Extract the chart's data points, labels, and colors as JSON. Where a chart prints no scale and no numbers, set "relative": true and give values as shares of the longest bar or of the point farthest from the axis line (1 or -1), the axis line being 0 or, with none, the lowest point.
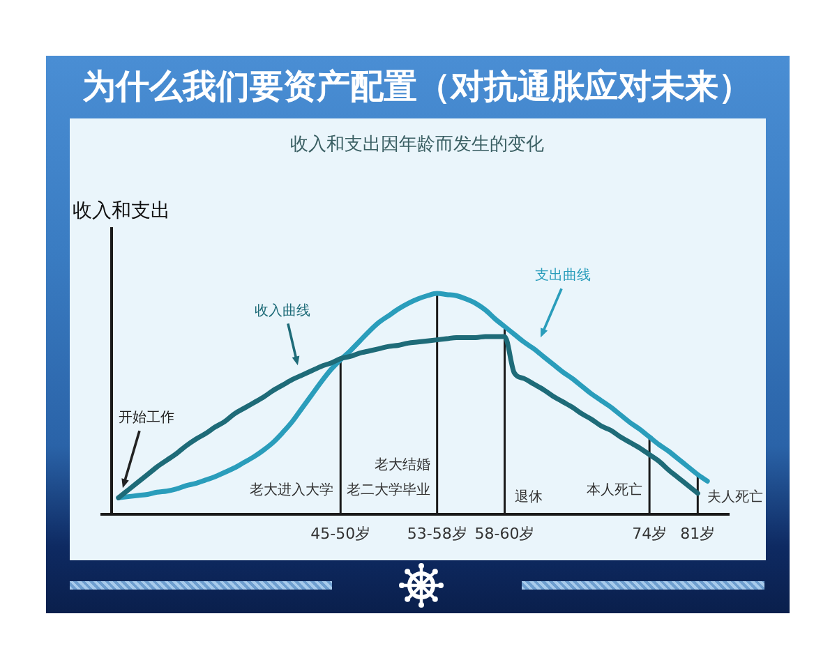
{
  "chart_data": {
    "type": "line",
    "relative": true,
    "title": "为什么我们要资产配置（对抗通胀应对未来）",
    "subtitle": "收入和支出因年龄而发生的变化",
    "ylabel": "收入和支出",
    "tick_labels": "x",
    "categories": [
      null,
      null,
      null,
      null,
      null,
      null,
      null,
      null,
      null,
      null,
      null,
      null,
      null,
      null,
      null,
      null,
      null,
      null,
      null,
      null,
      null,
      null,
      null,
      "45-50岁",
      null,
      null,
      null,
      null,
      null,
      null,
      null,
      null,
      null,
      "53-58岁",
      null,
      null,
      null,
      null,
      null,
      null,
      "58-60岁",
      null,
      null,
      null,
      null,
      null,
      null,
      null,
      null,
      null,
      null,
      null,
      null,
      null,
      null,
      "74岁",
      null,
      null,
      null,
      null,
      "81岁",
      null
    ],
    "series": [
      {
        "name": "收入曲线",
        "color": "#1e6b78",
        "values": [
          0.075,
          0.11,
          0.145,
          0.18,
          0.215,
          0.245,
          0.275,
          0.31,
          0.34,
          0.365,
          0.395,
          0.42,
          0.455,
          0.48,
          0.505,
          0.53,
          0.56,
          0.585,
          0.61,
          0.63,
          0.65,
          0.67,
          0.685,
          0.705,
          0.715,
          0.73,
          0.74,
          0.75,
          0.76,
          0.765,
          0.775,
          0.78,
          0.785,
          0.79,
          0.795,
          0.8,
          0.8,
          0.8,
          0.805,
          0.805,
          0.805,
          0.64,
          0.615,
          0.59,
          0.565,
          0.535,
          0.51,
          0.485,
          0.455,
          0.43,
          0.4,
          0.38,
          0.35,
          0.325,
          0.3,
          0.27,
          0.24,
          0.2,
          0.165,
          0.13,
          0.095,
          null
        ]
      },
      {
        "name": "支出曲线",
        "color": "#2a9dbb",
        "values": [
          0.075,
          0.08,
          0.085,
          0.09,
          0.1,
          0.105,
          0.115,
          0.13,
          0.14,
          0.155,
          0.17,
          0.19,
          0.21,
          0.235,
          0.26,
          0.29,
          0.325,
          0.37,
          0.42,
          0.48,
          0.54,
          0.6,
          0.655,
          0.7,
          0.74,
          0.785,
          0.83,
          0.87,
          0.9,
          0.93,
          0.955,
          0.975,
          0.99,
          1,
          0.995,
          0.99,
          0.975,
          0.955,
          0.925,
          0.885,
          0.85,
          0.815,
          0.78,
          0.75,
          0.715,
          0.68,
          0.645,
          0.615,
          0.58,
          0.545,
          0.515,
          0.485,
          0.45,
          0.415,
          0.385,
          0.35,
          0.315,
          0.285,
          0.25,
          0.215,
          0.18,
          0.15
        ]
      }
    ],
    "ref_lines": [
      {
        "axis": "x",
        "value": "45-50岁",
        "label": "老大进入大学"
      },
      {
        "axis": "x",
        "value": "53-58岁",
        "label": "老大结婚老二大学毕业"
      },
      {
        "axis": "x",
        "value": "58-60岁",
        "label": "退休"
      },
      {
        "axis": "x",
        "value": "74岁",
        "label": "本人死亡"
      },
      {
        "axis": "x",
        "value": "81岁",
        "label": "夫人死亡"
      }
    ],
    "annotations": [
      "开始工作"
    ]
  }
}
